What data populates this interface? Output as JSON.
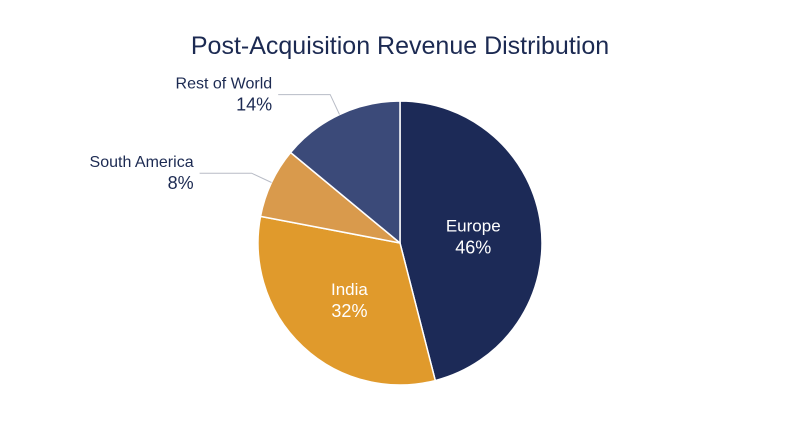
{
  "chart_data": {
    "type": "pie",
    "title": "Post-Acquisition Revenue Distribution",
    "categories": [
      "Europe",
      "India",
      "South America",
      "Rest of World"
    ],
    "values": [
      46,
      32,
      8,
      14
    ],
    "value_labels": [
      "46%",
      "32%",
      "8%",
      "14%"
    ],
    "colors": [
      "#1c2a57",
      "#e09a2c",
      "#d99a4c",
      "#3b4a79"
    ],
    "start_angle": "12 o'clock",
    "direction": "clockwise",
    "label_placement": [
      "inside",
      "inside",
      "outside-left",
      "outside-left"
    ],
    "legend": "none"
  }
}
